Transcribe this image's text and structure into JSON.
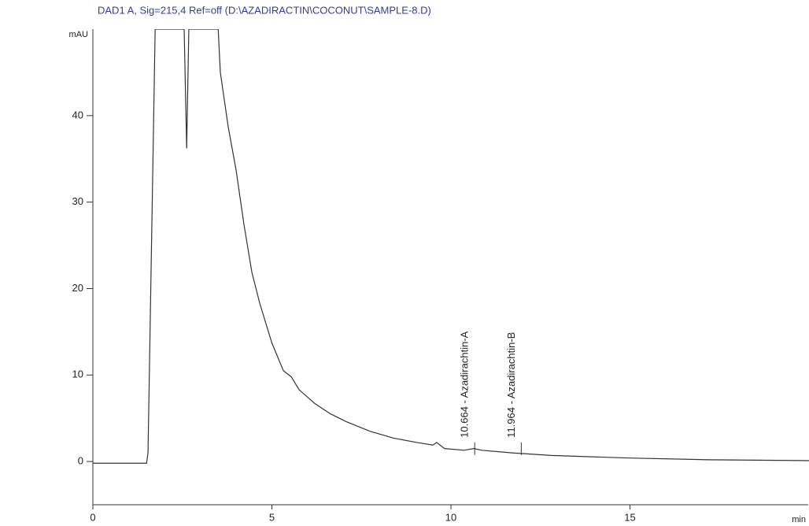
{
  "chart_data": {
    "type": "line",
    "title": "DAD1 A, Sig=215,4 Ref=off (D:\\AZADIRACTIN\\COCONUT\\SAMPLE-8.D)",
    "y_label": "mAU",
    "x_label": "min",
    "x": [
      0,
      1.5,
      1.54,
      1.74,
      2.55,
      2.62,
      2.68,
      3.5,
      3.56,
      3.78,
      4.0,
      4.22,
      4.44,
      4.66,
      5.0,
      5.32,
      5.54,
      5.76,
      6.2,
      6.64,
      7.08,
      7.74,
      8.4,
      9.05,
      9.5,
      9.6,
      9.82,
      10.37,
      10.64,
      10.86,
      11.7,
      12.8,
      15.0,
      17.2,
      20
    ],
    "series": [
      {
        "name": "DAD1 A",
        "color": "#333333",
        "values": [
          -0.2,
          -0.2,
          1,
          50,
          50,
          36.2,
          50,
          50,
          45,
          38.7,
          33.7,
          27.4,
          21.9,
          18.3,
          13.7,
          10.5,
          9.8,
          8.3,
          6.7,
          5.5,
          4.6,
          3.5,
          2.7,
          2.2,
          1.9,
          2.2,
          1.5,
          1.3,
          1.5,
          1.3,
          1.0,
          0.7,
          0.4,
          0.2,
          0.1
        ]
      }
    ],
    "xlim": [
      0,
      20
    ],
    "ylim": [
      -5,
      50
    ],
    "xticks": [
      0,
      5,
      10,
      15
    ],
    "yticks": [
      0,
      10,
      20,
      30,
      40
    ],
    "annotations": [
      {
        "text": "10.664 - Azadirachtin-A",
        "x": 10.664
      },
      {
        "text": "11.964 - Azadirachtin-B",
        "x": 11.964
      }
    ]
  }
}
